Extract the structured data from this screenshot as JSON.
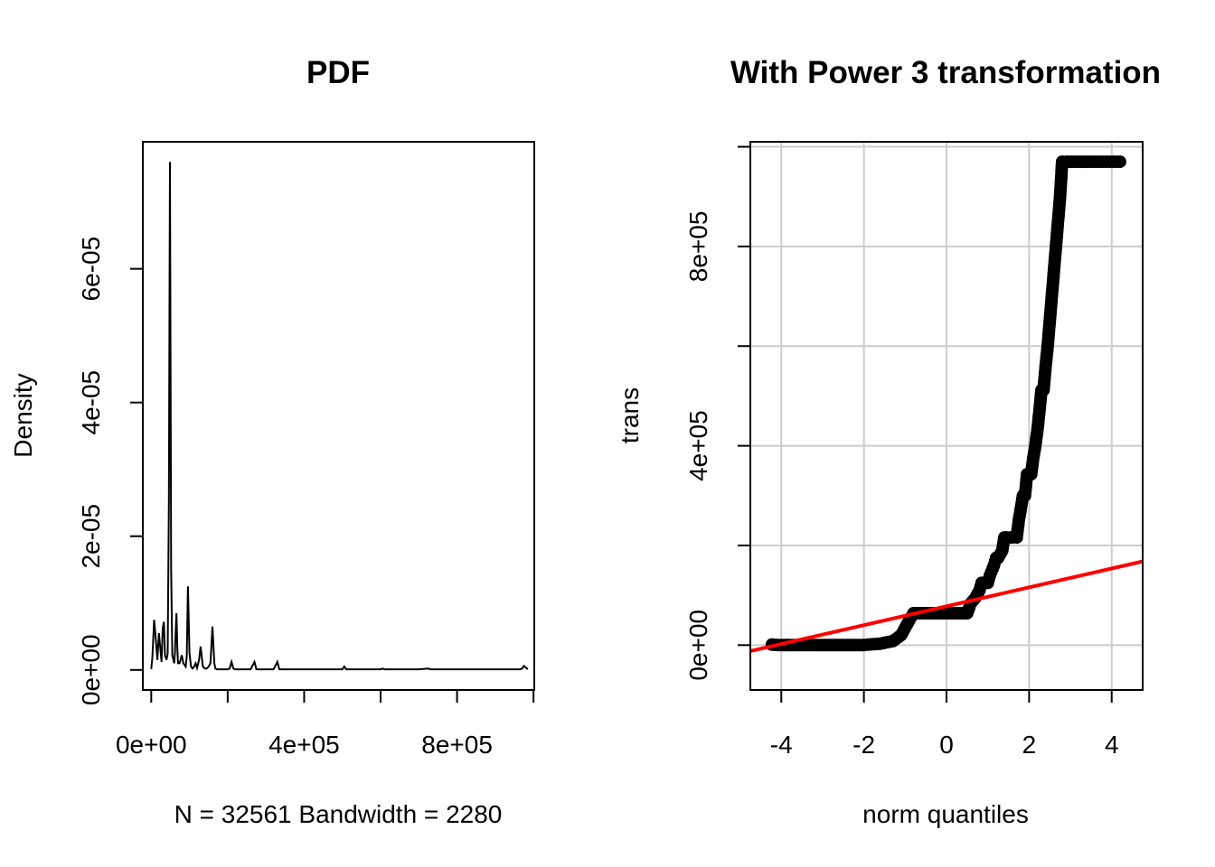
{
  "chart_data": [
    {
      "type": "line",
      "title": "PDF",
      "xlabel": "N = 32561   Bandwidth = 2280",
      "ylabel": "Density",
      "xlim": [
        -22000,
        1002000
      ],
      "ylim": [
        -3e-06,
        7.9e-05
      ],
      "x_ticks": [
        0,
        200000,
        400000,
        600000,
        800000,
        1000000
      ],
      "x_tick_labels": [
        "0e+00",
        "",
        "4e+05",
        "",
        "8e+05",
        ""
      ],
      "y_ticks": [
        0,
        2e-05,
        4e-05,
        6e-05
      ],
      "y_tick_labels": [
        "0e+00",
        "2e-05",
        "4e-05",
        "6e-05"
      ],
      "grid": false,
      "series": [
        {
          "color": "#000000",
          "x": [
            0,
            3000,
            7500,
            12000,
            16000,
            20000,
            24000,
            27000,
            30000,
            33000,
            36000,
            40000,
            43000,
            46000,
            49000,
            52000,
            55000,
            60000,
            62000,
            64000,
            66000,
            68000,
            70000,
            74000,
            80000,
            84000,
            90000,
            93000,
            96000,
            100000,
            104000,
            108000,
            112000,
            116000,
            120000,
            125000,
            129000,
            135000,
            140000,
            145000,
            150000,
            155000,
            160000,
            165000,
            168000,
            172000,
            176000,
            180000,
            190000,
            200000,
            205000,
            210000,
            215000,
            219000,
            223000,
            230000,
            240000,
            260000,
            270000,
            275000,
            280000,
            300000,
            320000,
            330000,
            335000,
            340000,
            345000,
            350000,
            365000,
            370000,
            375000,
            400000,
            420000,
            425000,
            430000,
            450000,
            480000,
            500000,
            505000,
            510000,
            515000,
            520000,
            560000,
            600000,
            605000,
            610000,
            650000,
            700000,
            725000,
            730000,
            800000,
            900000,
            960000,
            965000,
            970000,
            975000,
            985000
          ],
          "y": [
            1.4e-07,
            2e-06,
            7.5e-06,
            4.5e-06,
            1.5e-06,
            5.5e-06,
            3e-06,
            1.2e-06,
            6.2e-06,
            7.2e-06,
            2.2e-06,
            1.5e-06,
            2.5e-06,
            2.5e-05,
            7.6e-05,
            1.5e-05,
            2.2e-06,
            1e-06,
            2.5e-06,
            6e-06,
            8.5e-06,
            3.5e-06,
            1e-06,
            1e-06,
            2.2e-06,
            1e-06,
            5e-07,
            2e-06,
            1.25e-05,
            2.5e-06,
            5e-07,
            2e-07,
            5e-07,
            1e-06,
            3e-07,
            1.5e-06,
            3.5e-06,
            5e-07,
            2e-07,
            2e-07,
            5e-07,
            1e-06,
            6.5e-06,
            1e-06,
            2e-07,
            1e-07,
            1e-07,
            1e-07,
            1e-07,
            1e-07,
            2e-07,
            1.2e-06,
            2e-07,
            1e-07,
            1e-07,
            1e-07,
            1e-07,
            1e-07,
            1.2e-06,
            1e-07,
            1e-07,
            1e-07,
            1e-07,
            1.2e-06,
            1e-07,
            1e-07,
            1e-07,
            1e-07,
            1e-07,
            1e-07,
            1e-07,
            1e-07,
            1e-07,
            1e-07,
            1e-07,
            1e-07,
            1e-07,
            1e-07,
            5e-07,
            1e-07,
            1e-07,
            1e-07,
            1e-07,
            1e-07,
            2e-07,
            1e-07,
            1e-07,
            1e-07,
            2e-07,
            1e-07,
            1e-07,
            1e-07,
            1e-07,
            1e-07,
            2e-07,
            6e-07,
            1e-07
          ]
        }
      ]
    },
    {
      "type": "scatter",
      "title": "With Power 3 transformation",
      "xlabel": "norm quantiles",
      "ylabel": "trans",
      "xlim": [
        -4.75,
        4.75
      ],
      "ylim": [
        -90000,
        1010000
      ],
      "x_ticks": [
        -4,
        -2,
        0,
        2,
        4
      ],
      "x_tick_labels": [
        "-4",
        "-2",
        "0",
        "2",
        "4"
      ],
      "y_ticks": [
        0,
        200000,
        400000,
        600000,
        800000,
        1000000
      ],
      "y_tick_labels": [
        "0e+00",
        "",
        "4e+05",
        "",
        "8e+05",
        ""
      ],
      "grid": true,
      "grid_color": "#cccccc",
      "point_color": "#000000",
      "line_color": "#ff0000",
      "series": [
        {
          "x": [
            -4.23,
            -4.0,
            -3.6,
            -3.2,
            -2.8,
            -2.4,
            -2.0,
            -1.9,
            -1.6,
            -1.3,
            -1.1,
            -0.9,
            -0.8,
            -0.5,
            -0.2,
            0.0,
            0.3,
            0.5,
            0.55,
            0.6,
            0.7,
            0.8,
            0.85,
            0.9,
            1.0,
            1.05,
            1.15,
            1.2,
            1.25,
            1.35,
            1.4,
            1.45,
            1.55,
            1.6,
            1.7,
            1.75,
            1.8,
            1.85,
            1.9,
            1.95,
            2.0,
            2.05,
            2.1,
            2.15,
            2.2,
            2.25,
            2.3,
            2.35,
            2.4,
            2.45,
            2.5,
            2.55,
            2.6,
            2.65,
            2.7,
            2.75,
            2.8,
            2.9,
            3.1,
            3.4,
            3.7,
            3.95,
            4.2
          ],
          "y": [
            1000,
            0,
            0,
            0,
            0,
            0,
            0,
            1000,
            3000,
            8000,
            20000,
            50000,
            64000,
            64000,
            64000,
            64000,
            64000,
            64000,
            75000,
            85000,
            95000,
            110000,
            125000,
            125000,
            125000,
            140000,
            160000,
            175000,
            175000,
            190000,
            216000,
            216000,
            216000,
            216000,
            216000,
            250000,
            274000,
            300000,
            300000,
            343000,
            343000,
            343000,
            375000,
            400000,
            430000,
            470000,
            512000,
            512000,
            560000,
            600000,
            650000,
            700000,
            750000,
            800000,
            850000,
            900000,
            970000,
            970000,
            970000,
            970000,
            970000,
            970000,
            970000
          ]
        }
      ],
      "fit_line": {
        "x": [
          -4.75,
          4.75
        ],
        "y": [
          -12000,
          168000
        ]
      }
    }
  ]
}
